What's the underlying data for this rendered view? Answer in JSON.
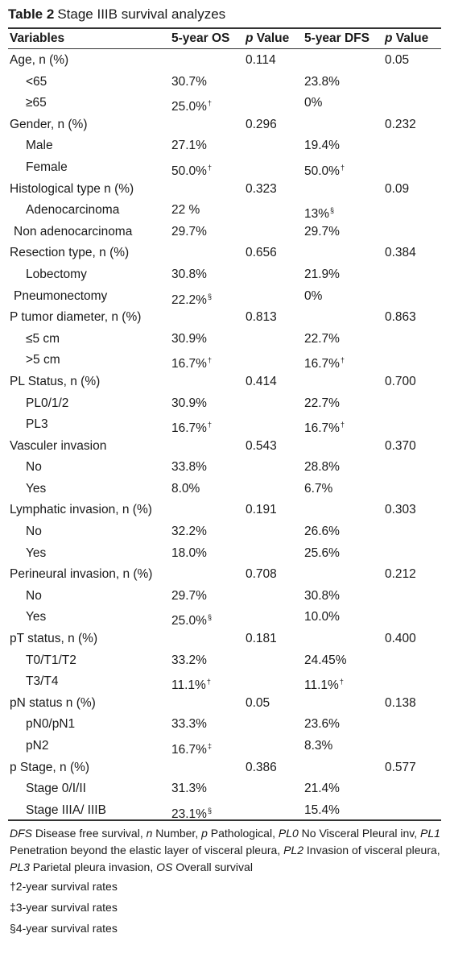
{
  "table": {
    "label": "Table 2",
    "title": "Stage IIIB survival analyzes"
  },
  "header": {
    "variables": "Variables",
    "os": "5-year OS",
    "p_italic": "p",
    "value": " Value",
    "dfs": "5-year DFS",
    "p_italic2": "p",
    "value2": " Value"
  },
  "rows": [
    {
      "label": "Age, n (%)",
      "os": "",
      "os_p": "0.114",
      "dfs": "",
      "dfs_p": "0.05"
    },
    {
      "label": "<65",
      "os": "30.7%",
      "os_p": "",
      "dfs": "23.8%",
      "dfs_p": ""
    },
    {
      "label": "≥65",
      "os": "25.0%",
      "os_sup": "†",
      "os_p": "",
      "dfs": "0%",
      "dfs_p": ""
    },
    {
      "label": "Gender, n (%)",
      "os": "",
      "os_p": "0.296",
      "dfs": "",
      "dfs_p": "0.232"
    },
    {
      "label": "Male",
      "os": "27.1%",
      "os_p": "",
      "dfs": "19.4%",
      "dfs_p": ""
    },
    {
      "label": "Female",
      "os": "50.0%",
      "os_sup": "†",
      "os_p": "",
      "dfs": "50.0%",
      "dfs_sup": "†",
      "dfs_p": ""
    },
    {
      "label": "Histological type n (%)",
      "os": "",
      "os_p": "0.323",
      "dfs": "",
      "dfs_p": "0.09"
    },
    {
      "label": "Adenocarcinoma",
      "os": "22 %",
      "os_p": "",
      "dfs": "13%",
      "dfs_sup": "§",
      "dfs_p": ""
    },
    {
      "label": "Non adenocarcinoma",
      "os": "29.7%",
      "os_p": "",
      "dfs": "29.7%",
      "dfs_p": ""
    },
    {
      "label": "Resection type, n (%)",
      "os": "",
      "os_p": "0.656",
      "dfs": "",
      "dfs_p": "0.384"
    },
    {
      "label": "Lobectomy",
      "os": "30.8%",
      "os_p": "",
      "dfs": "21.9%",
      "dfs_p": ""
    },
    {
      "label": "Pneumonectomy",
      "os": "22.2%",
      "os_sup": "§",
      "os_p": "",
      "dfs": "0%",
      "dfs_p": ""
    },
    {
      "label": "P tumor diameter, n (%)",
      "os": "",
      "os_p": "0.813",
      "dfs": "",
      "dfs_p": "0.863"
    },
    {
      "label": "≤5 cm",
      "os": "30.9%",
      "os_p": "",
      "dfs": "22.7%",
      "dfs_p": ""
    },
    {
      "label": ">5 cm",
      "os": "16.7%",
      "os_sup": "†",
      "os_p": "",
      "dfs": "16.7%",
      "dfs_sup": "†",
      "dfs_p": ""
    },
    {
      "label": "PL Status, n (%)",
      "os": "",
      "os_p": "0.414",
      "dfs": "",
      "dfs_p": "0.700"
    },
    {
      "label": "PL0/1/2",
      "os": "30.9%",
      "os_p": "",
      "dfs": "22.7%",
      "dfs_p": ""
    },
    {
      "label": "PL3",
      "os": "16.7%",
      "os_sup": "†",
      "os_p": "",
      "dfs": "16.7%",
      "dfs_sup": "†",
      "dfs_p": ""
    },
    {
      "label": "Vasculer invasion",
      "os": "",
      "os_p": "0.543",
      "dfs": "",
      "dfs_p": "0.370"
    },
    {
      "label": "No",
      "os": "33.8%",
      "os_p": "",
      "dfs": "28.8%",
      "dfs_p": ""
    },
    {
      "label": "Yes",
      "os": "8.0%",
      "os_p": "",
      "dfs": "6.7%",
      "dfs_p": ""
    },
    {
      "label": "Lymphatic invasion, n (%)",
      "os": "",
      "os_p": "0.191",
      "dfs": "",
      "dfs_p": "0.303"
    },
    {
      "label": "No",
      "os": "32.2%",
      "os_p": "",
      "dfs": "26.6%",
      "dfs_p": ""
    },
    {
      "label": "Yes",
      "os": "18.0%",
      "os_p": "",
      "dfs": "25.6%",
      "dfs_p": ""
    },
    {
      "label": "Perineural invasion, n (%)",
      "os": "",
      "os_p": "0.708",
      "dfs": "",
      "dfs_p": "0.212"
    },
    {
      "label": "No",
      "os": "29.7%",
      "os_p": "",
      "dfs": "30.8%",
      "dfs_p": ""
    },
    {
      "label": "Yes",
      "os": "25.0%",
      "os_sup": "§",
      "os_p": "",
      "dfs": "10.0%",
      "dfs_p": ""
    },
    {
      "label": "pT status, n (%)",
      "os": "",
      "os_p": "0.181",
      "dfs": "",
      "dfs_p": "0.400"
    },
    {
      "label": "T0/T1/T2",
      "os": "33.2%",
      "os_p": "",
      "dfs": "24.45%",
      "dfs_p": ""
    },
    {
      "label": "T3/T4",
      "os": "11.1%",
      "os_sup": "†",
      "os_p": "",
      "dfs": "11.1%",
      "dfs_sup": "†",
      "dfs_p": ""
    },
    {
      "label": "pN status n (%)",
      "os": "",
      "os_p": "0.05",
      "dfs": "",
      "dfs_p": "0.138"
    },
    {
      "label": "pN0/pN1",
      "os": "33.3%",
      "os_p": "",
      "dfs": "23.6%",
      "dfs_p": ""
    },
    {
      "label": "pN2",
      "os": "16.7%",
      "os_sup": "‡",
      "os_p": "",
      "dfs": "8.3%",
      "dfs_p": ""
    },
    {
      "label": "p Stage, n (%)",
      "os": "",
      "os_p": "0.386",
      "dfs": "",
      "dfs_p": "0.577"
    },
    {
      "label": "Stage 0/I/II",
      "os": "31.3%",
      "os_p": "",
      "dfs": "21.4%",
      "dfs_p": ""
    },
    {
      "label": "Stage IIIA/ IIIB",
      "os": "23.1%",
      "os_sup": "§",
      "os_p": "",
      "dfs": "15.4%",
      "dfs_p": ""
    }
  ],
  "footnotes": {
    "abbrev": [
      {
        "term": "DFS",
        "def": " Disease free survival, "
      },
      {
        "term": "n",
        "def": " Number, "
      },
      {
        "term": "p",
        "def": " Pathological, "
      },
      {
        "term": "PL0",
        "def": " No Visceral Pleural inv, "
      },
      {
        "term": "PL1",
        "def": " Penetration beyond the elastic layer of visceral pleura, "
      },
      {
        "term": "PL2",
        "def": " Invasion of visceral pleura, "
      },
      {
        "term": "PL3",
        "def": " Parietal pleura invasion, "
      },
      {
        "term": "OS",
        "def": " Overall survival"
      }
    ],
    "dagger": "†2-year survival rates",
    "double_dagger": "‡3-year survival rates",
    "section": "§4-year survival rates"
  }
}
